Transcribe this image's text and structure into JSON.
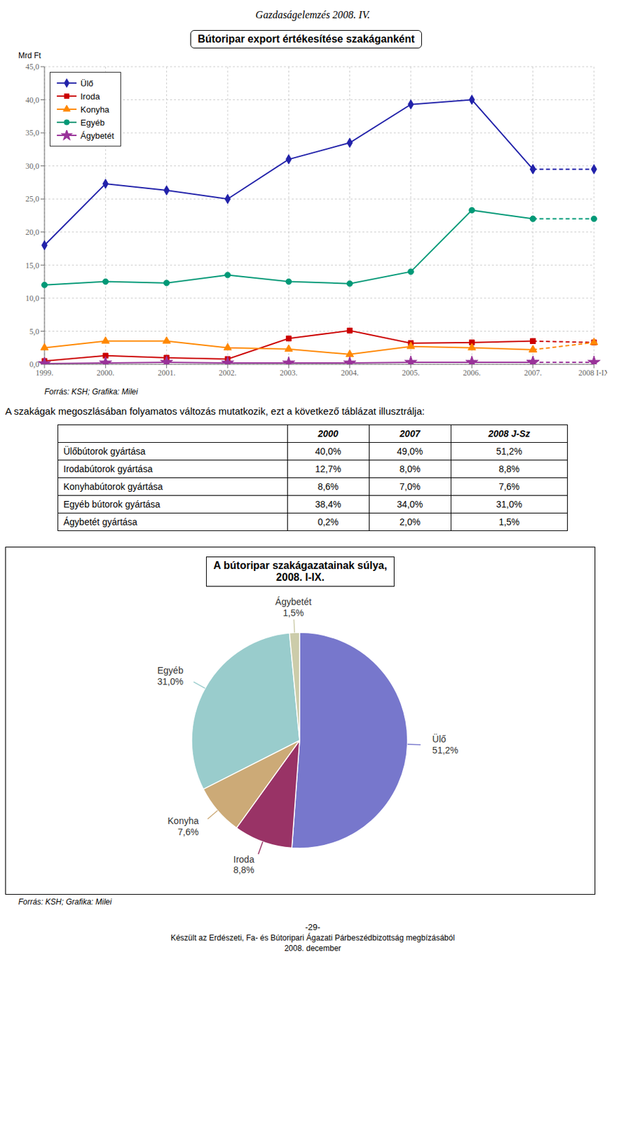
{
  "title": "Gazdaságelemzés 2008. IV.",
  "chart_data": [
    {
      "type": "line",
      "title": "Bútoripar export értékesítése szakáganként",
      "ylabel": "Mrd Ft",
      "categories": [
        "1999.",
        "2000.",
        "2001.",
        "2002.",
        "2003.",
        "2004.",
        "2005.",
        "2006.",
        "2007.",
        "2008 I-IX"
      ],
      "series": [
        {
          "name": "Ülő",
          "color": "#2222aa",
          "marker": "diamond",
          "values": [
            18.0,
            27.3,
            26.3,
            25.0,
            31.0,
            33.5,
            39.3,
            40.0,
            29.5,
            29.5
          ]
        },
        {
          "name": "Iroda",
          "color": "#cc0000",
          "marker": "square",
          "values": [
            0.5,
            1.3,
            1.0,
            0.8,
            3.9,
            5.1,
            3.2,
            3.3,
            3.5,
            3.3
          ]
        },
        {
          "name": "Konyha",
          "color": "#ff8800",
          "marker": "triangle",
          "values": [
            2.5,
            3.5,
            3.5,
            2.5,
            2.3,
            1.5,
            2.7,
            2.5,
            2.2,
            3.3
          ]
        },
        {
          "name": "Egyéb",
          "color": "#009977",
          "marker": "circle",
          "values": [
            12.0,
            12.5,
            12.3,
            13.5,
            12.5,
            12.2,
            14.0,
            23.3,
            22.0,
            22.0
          ]
        },
        {
          "name": "Ágybetét",
          "color": "#993399",
          "marker": "star",
          "values": [
            0.1,
            0.2,
            0.3,
            0.2,
            0.2,
            0.2,
            0.3,
            0.3,
            0.3,
            0.3
          ]
        }
      ],
      "ylim": [
        0,
        45
      ],
      "yticks": [
        {
          "value": 0,
          "label": "0,0"
        },
        {
          "value": 5,
          "label": "5,0"
        },
        {
          "value": 10,
          "label": "10,0"
        },
        {
          "value": 15,
          "label": "15,0"
        },
        {
          "value": 20,
          "label": "20,0"
        },
        {
          "value": 25,
          "label": "25,0"
        },
        {
          "value": 30,
          "label": "30,0"
        },
        {
          "value": 35,
          "label": "35,0"
        },
        {
          "value": 40,
          "label": "40,0"
        },
        {
          "value": 45,
          "label": "45,0"
        }
      ],
      "grid": true,
      "legend": "upper left",
      "annotations": [
        "Forrás: KSH; Grafika: Milei"
      ]
    },
    {
      "type": "table",
      "title": "A szakágak megoszlásában folyamatos változás mutatkozik, ezt a következő táblázat illusztrálja:",
      "columns": [
        "2000",
        "2007",
        "2008 J-Sz"
      ],
      "rows": [
        {
          "name": "Ülőbútorok gyártása",
          "values": [
            40.0,
            49.0,
            51.2
          ],
          "value_labels": [
            "40,0%",
            "49,0%",
            "51,2%"
          ]
        },
        {
          "name": "Irodabútorok gyártása",
          "values": [
            12.7,
            8.0,
            8.8
          ],
          "value_labels": [
            "12,7%",
            "8,0%",
            "8,8%"
          ]
        },
        {
          "name": "Konyhabútorok gyártása",
          "values": [
            8.6,
            7.0,
            7.6
          ],
          "value_labels": [
            "8,6%",
            "7,0%",
            "7,6%"
          ]
        },
        {
          "name": "Egyéb bútorok gyártása",
          "values": [
            38.4,
            34.0,
            31.0
          ],
          "value_labels": [
            "38,4%",
            "34,0%",
            "31,0%"
          ]
        },
        {
          "name": "Ágybetét gyártása",
          "values": [
            0.2,
            2.0,
            1.5
          ],
          "value_labels": [
            "0,2%",
            "2,0%",
            "1,5%"
          ]
        }
      ]
    },
    {
      "type": "pie",
      "title": "A bútoripar szakágazatainak súlya,\n2008. I-IX.",
      "categories": [
        "Ülő",
        "Iroda",
        "Konyha",
        "Egyéb",
        "Ágybetét"
      ],
      "values": [
        51.2,
        8.8,
        7.6,
        31.0,
        1.5
      ],
      "value_labels": [
        "51,2%",
        "8,8%",
        "7,6%",
        "31,0%",
        "1,5%"
      ],
      "colors": [
        "#7777cc",
        "#993366",
        "#ccaa77",
        "#99cccc",
        "#ccccaa"
      ],
      "data_labels": true,
      "annotations": [
        "Forrás: KSH; Grafika: Milei"
      ]
    }
  ],
  "annotations": [
    "-29-",
    "Készült az Erdészeti, Fa- és Bútoripari Ágazati Párbeszédbizottság megbízásából",
    "2008. december"
  ]
}
